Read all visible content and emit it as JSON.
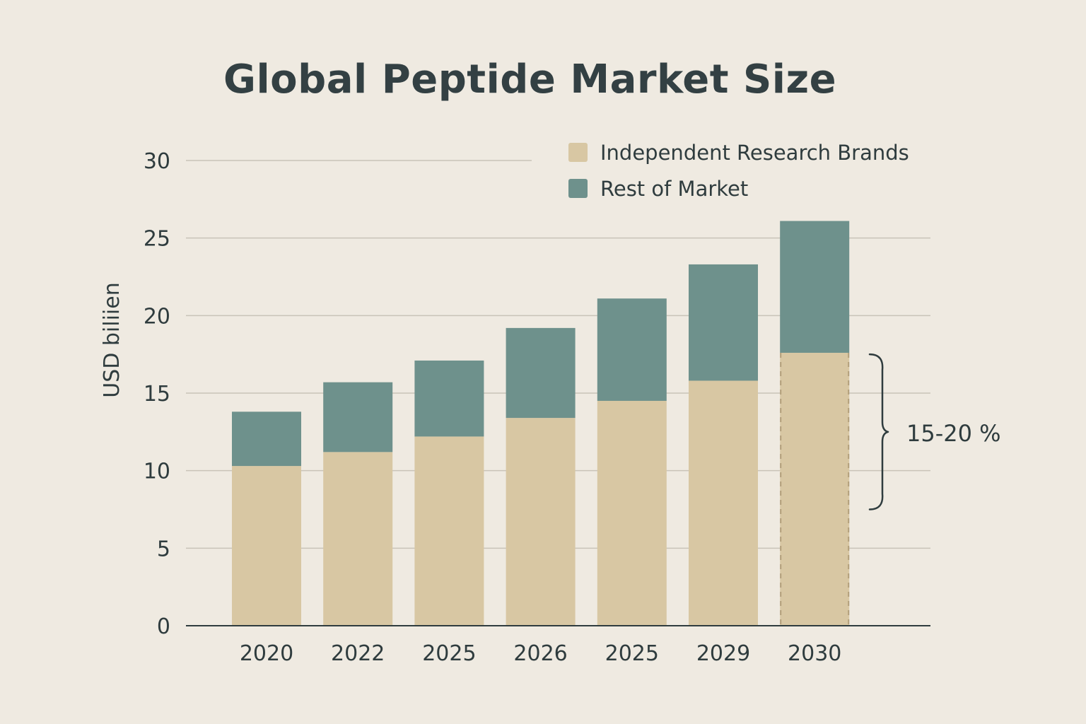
{
  "chart_data": {
    "type": "bar",
    "stacked": true,
    "title": "Global Peptide Market Size",
    "xlabel": "",
    "ylabel": "USD biliien",
    "ylim": [
      0,
      30
    ],
    "yticks": [
      0,
      5,
      10,
      15,
      20,
      25,
      30
    ],
    "grid": true,
    "legend_position": "top-right",
    "categories": [
      "2020",
      "2022",
      "2025",
      "2026",
      "2025",
      "2029",
      "2030"
    ],
    "series": [
      {
        "name": "Independent Research Brands",
        "color": "#d8c7a3",
        "values": [
          10.3,
          11.2,
          12.2,
          13.4,
          14.5,
          15.8,
          17.6
        ]
      },
      {
        "name": "Rest of Market",
        "color": "#6e918c",
        "values": [
          3.5,
          4.5,
          4.9,
          5.8,
          6.6,
          7.5,
          8.5
        ]
      }
    ],
    "totals": [
      13.8,
      15.7,
      17.1,
      19.2,
      21.1,
      23.3,
      26.1
    ],
    "annotation": {
      "text": "15-20 %",
      "category": "2030",
      "range": [
        7.5,
        17.5
      ]
    },
    "highlighted_category": "2030"
  },
  "colors": {
    "background": "#efeae1",
    "grid": "#c9c3b8",
    "axis": "#2f3c3e",
    "text": "#2f3c3e",
    "title": "#334043"
  }
}
